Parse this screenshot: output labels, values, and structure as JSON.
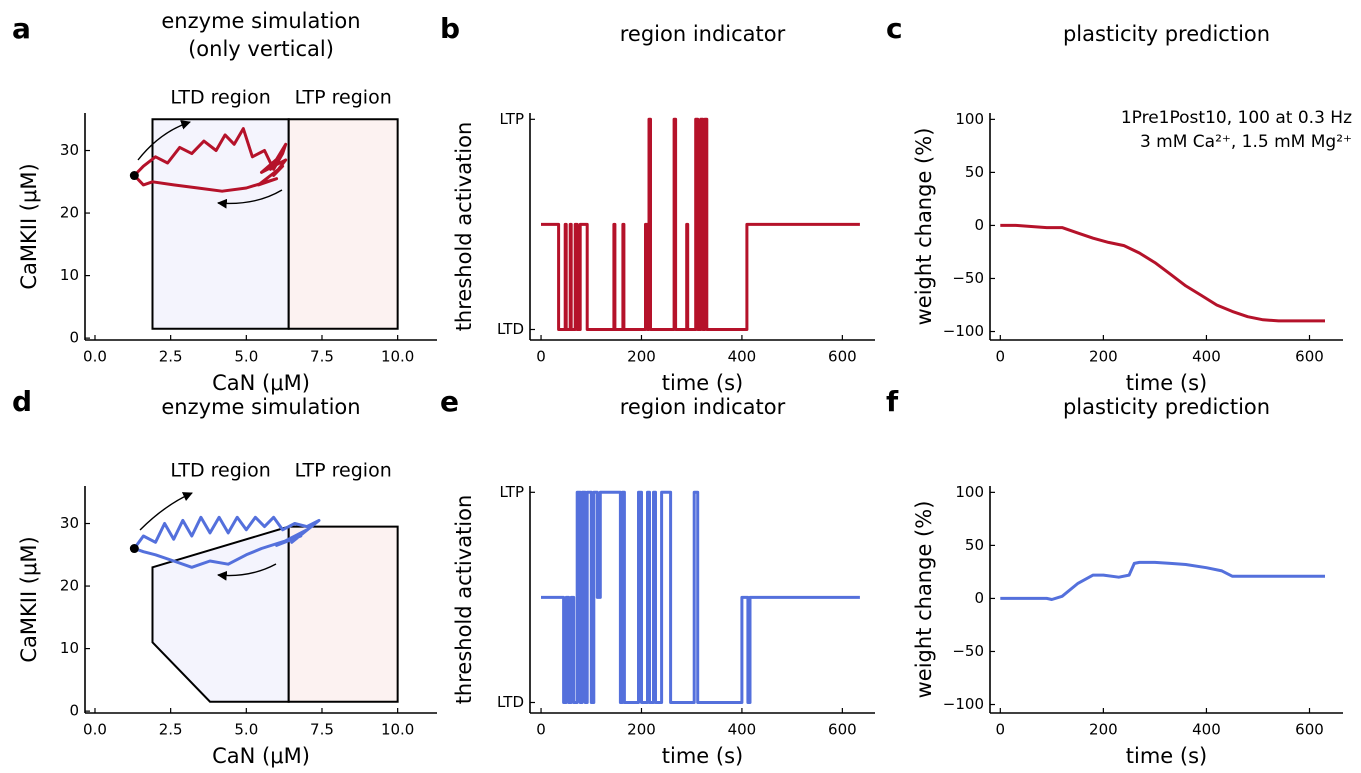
{
  "chart_data": [
    {
      "type": "line",
      "panel": "a",
      "title": [
        "enzyme simulation",
        "(only vertical)"
      ],
      "xlabel": "CaN (μM)",
      "ylabel": "CaMKII (μM)",
      "xlim": [
        -0.33,
        11.3
      ],
      "ylim": [
        -0.3,
        36
      ],
      "xticks": [
        {
          "value": 0,
          "label": "0.0"
        },
        {
          "value": 2.5,
          "label": "2.5"
        },
        {
          "value": 5,
          "label": "5.0"
        },
        {
          "value": 7.5,
          "label": "7.5"
        },
        {
          "value": 10,
          "label": "10.0"
        }
      ],
      "yticks": [
        0,
        10,
        20,
        30
      ],
      "color": "#b5122a",
      "start_marker_color": "#000000",
      "regions": [
        {
          "name": "LTD region",
          "color": "#f4f4fd",
          "x": [
            1.9,
            6.4,
            6.4,
            1.9
          ],
          "y": [
            35,
            35,
            1.5,
            1.5
          ]
        },
        {
          "name": "LTP region",
          "color": "#fcf2f1",
          "x": [
            6.4,
            10,
            10,
            6.4
          ],
          "y": [
            35,
            35,
            1.5,
            1.5
          ]
        }
      ],
      "x": [
        1.3,
        1.6,
        2.0,
        2.4,
        2.8,
        3.2,
        3.6,
        4.0,
        4.3,
        4.6,
        4.9,
        5.2,
        5.6,
        5.9,
        6.2,
        6.3,
        5.8,
        6.1,
        5.5,
        6.3,
        5.9,
        6.2,
        5.4,
        6.0,
        5.0,
        4.2,
        3.4,
        2.6,
        1.9,
        1.6,
        1.4,
        1.3
      ],
      "values": [
        26,
        27.5,
        29,
        28,
        30.5,
        29.5,
        31.5,
        30,
        32.5,
        31,
        33.5,
        29,
        30,
        27,
        29.5,
        31,
        27,
        29,
        26.5,
        28.5,
        26,
        27.5,
        24.5,
        25.5,
        24,
        23.5,
        24,
        24.5,
        25,
        24.5,
        25.5,
        26
      ]
    },
    {
      "type": "line",
      "panel": "b",
      "title": "region indicator",
      "xlabel": "time (s)",
      "ylabel": "threshold activation",
      "xlim": [
        -22,
        665
      ],
      "ylim": [
        -0.05,
        1.03
      ],
      "xticks": [
        0,
        200,
        400,
        600
      ],
      "yticks": [
        {
          "value": 0,
          "label": "LTD"
        },
        {
          "value": 1,
          "label": "LTP"
        }
      ],
      "color": "#b5122a",
      "x": [
        0,
        35,
        35,
        48,
        48,
        50,
        50,
        58,
        58,
        60,
        60,
        68,
        68,
        72,
        72,
        78,
        78,
        92,
        92,
        145,
        145,
        147,
        147,
        163,
        163,
        165,
        165,
        208,
        208,
        212,
        212,
        215,
        215,
        218,
        218,
        265,
        265,
        268,
        268,
        290,
        290,
        292,
        292,
        308,
        308,
        312,
        312,
        318,
        318,
        322,
        322,
        326,
        326,
        330,
        330,
        410,
        410,
        635
      ],
      "values": [
        0.5,
        0.5,
        0,
        0,
        0.5,
        0.5,
        0,
        0,
        0.5,
        0.5,
        0,
        0,
        0.5,
        0.5,
        0,
        0,
        0.5,
        0.5,
        0,
        0,
        0.5,
        0.5,
        0,
        0,
        0.5,
        0.5,
        0,
        0,
        0.5,
        0.5,
        0,
        0,
        1,
        1,
        0,
        0,
        1,
        1,
        0,
        0,
        0.5,
        0.5,
        0,
        0,
        1,
        1,
        0,
        0,
        1,
        1,
        0,
        0,
        1,
        1,
        0,
        0,
        0.5,
        0.5
      ]
    },
    {
      "type": "line",
      "panel": "c",
      "title": "plasticity prediction",
      "xlabel": "time (s)",
      "ylabel": "weight change (%)",
      "annotation": [
        "1Pre1Post10, 100 at 0.3 Hz",
        "3 mM Ca²⁺, 1.5 mM Mg²⁺"
      ],
      "xlim": [
        -20,
        665
      ],
      "ylim": [
        -108,
        106
      ],
      "xticks": [
        0,
        200,
        400,
        600
      ],
      "yticks": [
        {
          "value": -100,
          "label": "−100"
        },
        {
          "value": -50,
          "label": "−50"
        },
        0,
        50,
        100
      ],
      "color": "#b5122a",
      "x": [
        0,
        30,
        60,
        90,
        120,
        150,
        180,
        210,
        240,
        270,
        300,
        330,
        360,
        390,
        420,
        450,
        480,
        510,
        540,
        570,
        600,
        630
      ],
      "values": [
        0,
        0,
        -1,
        -2,
        -2,
        -7,
        -12,
        -16,
        -19,
        -26,
        -35,
        -46,
        -57,
        -66,
        -75,
        -81,
        -86,
        -89,
        -90,
        -90,
        -90,
        -90
      ]
    },
    {
      "type": "line",
      "panel": "d",
      "title": "enzyme simulation",
      "xlabel": "CaN (μM)",
      "ylabel": "CaMKII (μM)",
      "xlim": [
        -0.33,
        11.3
      ],
      "ylim": [
        -0.3,
        36
      ],
      "xticks": [
        {
          "value": 0,
          "label": "0.0"
        },
        {
          "value": 2.5,
          "label": "2.5"
        },
        {
          "value": 5,
          "label": "5.0"
        },
        {
          "value": 7.5,
          "label": "7.5"
        },
        {
          "value": 10,
          "label": "10.0"
        }
      ],
      "yticks": [
        0,
        10,
        20,
        30
      ],
      "color": "#5470dc",
      "start_marker_color": "#000000",
      "regions": [
        {
          "name": "LTD region",
          "color": "#f4f4fd",
          "x": [
            1.9,
            6.4,
            6.4,
            3.8,
            1.9
          ],
          "y": [
            23,
            29.5,
            1.5,
            1.5,
            11
          ]
        },
        {
          "name": "LTP region",
          "color": "#fcf2f1",
          "x": [
            6.4,
            10,
            10,
            6.4
          ],
          "y": [
            29.5,
            29.5,
            1.5,
            1.5
          ]
        }
      ],
      "x": [
        1.3,
        1.6,
        2.0,
        2.3,
        2.6,
        2.9,
        3.2,
        3.5,
        3.8,
        4.1,
        4.4,
        4.7,
        5.0,
        5.3,
        5.6,
        5.9,
        6.2,
        6.6,
        7.0,
        7.4,
        6.5,
        7.0,
        6.0,
        6.8,
        5.5,
        5.0,
        4.4,
        3.8,
        3.2,
        2.6,
        2.0,
        1.6,
        1.3
      ],
      "values": [
        26,
        28,
        27,
        30,
        27.5,
        30.5,
        28,
        31,
        28.5,
        31,
        28.5,
        31,
        29,
        31,
        29.5,
        31,
        29,
        30,
        29.5,
        30.5,
        27,
        29,
        26.5,
        28,
        26,
        25,
        23.5,
        24,
        23,
        24,
        25,
        25.5,
        26
      ]
    },
    {
      "type": "line",
      "panel": "e",
      "title": "region indicator",
      "xlabel": "time (s)",
      "ylabel": "threshold activation",
      "xlim": [
        -22,
        665
      ],
      "ylim": [
        -0.05,
        1.03
      ],
      "xticks": [
        0,
        200,
        400,
        600
      ],
      "yticks": [
        {
          "value": 0,
          "label": "LTD"
        },
        {
          "value": 1,
          "label": "LTP"
        }
      ],
      "color": "#5470dc",
      "x": [
        0,
        45,
        45,
        50,
        50,
        55,
        55,
        60,
        60,
        65,
        65,
        72,
        72,
        78,
        78,
        82,
        82,
        88,
        88,
        92,
        92,
        100,
        100,
        105,
        105,
        112,
        112,
        118,
        118,
        158,
        158,
        162,
        162,
        166,
        166,
        194,
        194,
        200,
        200,
        212,
        212,
        216,
        216,
        224,
        224,
        228,
        228,
        240,
        240,
        258,
        258,
        305,
        305,
        312,
        312,
        400,
        400,
        412,
        412,
        416,
        416,
        635
      ],
      "values": [
        0.5,
        0.5,
        0,
        0,
        0.5,
        0.5,
        0,
        0,
        0.5,
        0.5,
        0,
        0,
        1,
        1,
        0,
        0,
        1,
        1,
        0,
        0,
        1,
        1,
        0,
        0,
        1,
        1,
        0.5,
        0.5,
        1,
        1,
        0,
        0,
        1,
        1,
        0,
        0,
        1,
        1,
        0,
        0,
        1,
        1,
        0,
        0,
        1,
        1,
        0,
        0,
        1,
        1,
        0,
        0,
        1,
        1,
        0,
        0,
        0.5,
        0.5,
        0,
        0,
        0.5,
        0.5
      ]
    },
    {
      "type": "line",
      "panel": "f",
      "title": "plasticity prediction",
      "xlabel": "time (s)",
      "ylabel": "weight change (%)",
      "xlim": [
        -20,
        665
      ],
      "ylim": [
        -108,
        106
      ],
      "xticks": [
        0,
        200,
        400,
        600
      ],
      "yticks": [
        {
          "value": -100,
          "label": "−100"
        },
        {
          "value": -50,
          "label": "−50"
        },
        0,
        50,
        100
      ],
      "color": "#5470dc",
      "x": [
        0,
        30,
        60,
        90,
        100,
        120,
        150,
        180,
        200,
        230,
        250,
        260,
        270,
        300,
        330,
        360,
        400,
        430,
        450,
        480,
        530,
        600,
        630
      ],
      "values": [
        0,
        0,
        0,
        0,
        -1,
        2,
        14,
        22,
        22,
        20,
        22,
        33,
        34,
        34,
        33,
        32,
        29,
        26,
        21,
        21,
        21,
        21,
        21
      ]
    }
  ]
}
